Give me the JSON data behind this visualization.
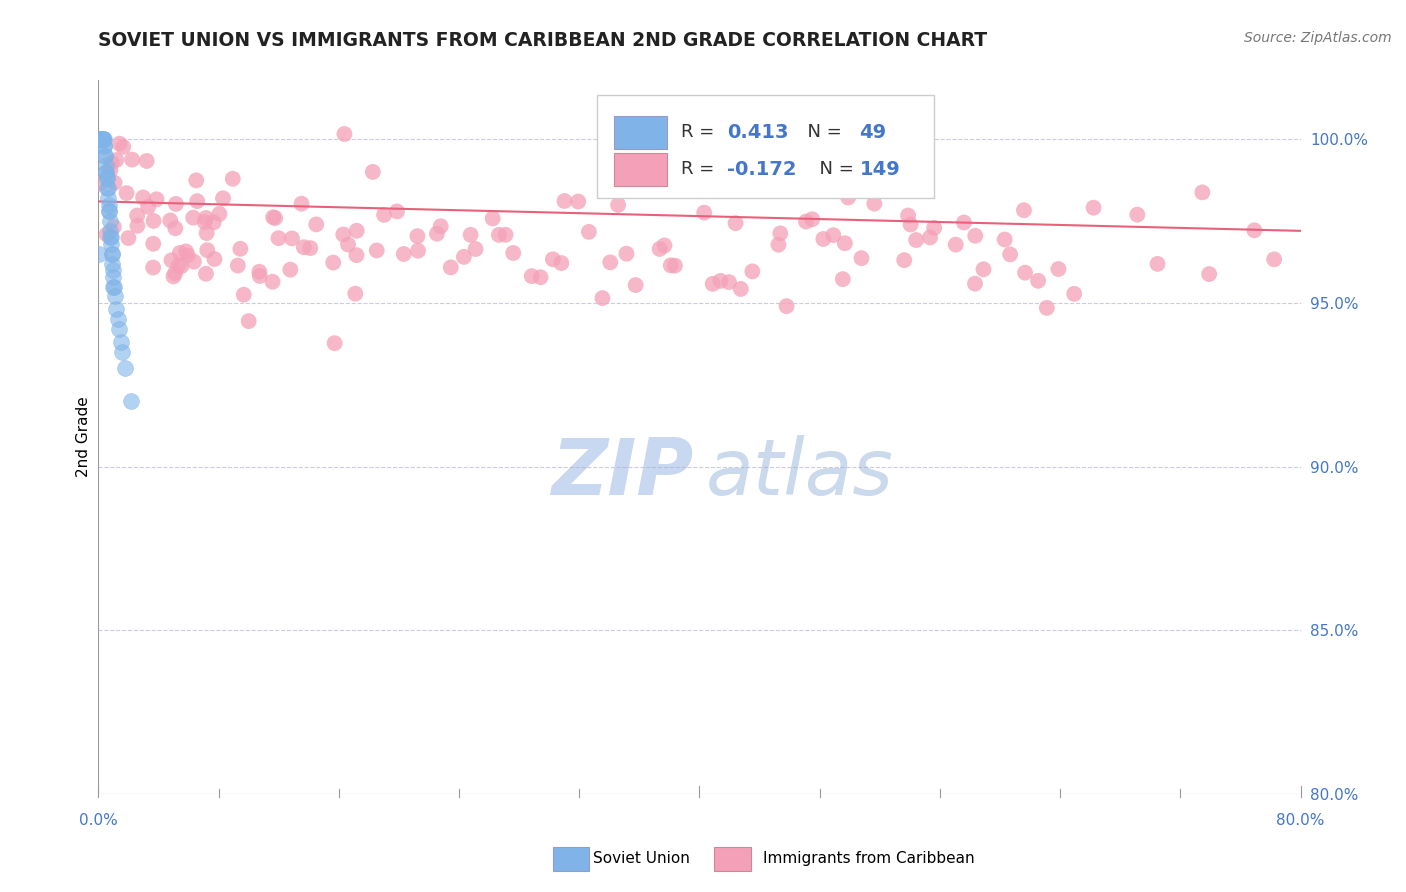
{
  "title": "SOVIET UNION VS IMMIGRANTS FROM CARIBBEAN 2ND GRADE CORRELATION CHART",
  "source": "Source: ZipAtlas.com",
  "ylabel": "2nd Grade",
  "xmin": 0.0,
  "xmax": 80.0,
  "ymin": 80.0,
  "ymax": 101.8,
  "legend_R1": "0.413",
  "legend_N1": "49",
  "legend_R2": "-0.172",
  "legend_N2": "149",
  "blue_color": "#80B4E8",
  "pink_color": "#F4A0B8",
  "pink_line_color": "#E8607A",
  "watermark_zip_color": "#C8D8F0",
  "watermark_atlas_color": "#A8C0E0",
  "axis_color": "#4477CC",
  "blue_scatter_x": [
    0.05,
    0.08,
    0.1,
    0.12,
    0.15,
    0.18,
    0.2,
    0.22,
    0.25,
    0.28,
    0.3,
    0.32,
    0.35,
    0.38,
    0.4,
    0.42,
    0.45,
    0.48,
    0.5,
    0.52,
    0.55,
    0.58,
    0.6,
    0.62,
    0.65,
    0.68,
    0.7,
    0.72,
    0.75,
    0.78,
    0.8,
    0.82,
    0.85,
    0.88,
    0.9,
    0.92,
    0.95,
    0.98,
    1.0,
    1.05,
    1.1,
    1.2,
    1.3,
    1.4,
    1.5,
    1.6,
    1.8,
    2.2,
    0.05
  ],
  "blue_scatter_y": [
    100.0,
    100.0,
    100.0,
    100.0,
    100.0,
    100.0,
    100.0,
    100.0,
    100.0,
    100.0,
    100.0,
    100.0,
    100.0,
    99.8,
    99.8,
    99.5,
    99.5,
    99.2,
    99.0,
    99.0,
    98.8,
    98.8,
    98.5,
    98.5,
    98.2,
    98.0,
    97.8,
    97.8,
    97.5,
    97.2,
    97.0,
    97.0,
    96.8,
    96.5,
    96.5,
    96.2,
    96.0,
    95.8,
    95.5,
    95.5,
    95.2,
    94.8,
    94.5,
    94.2,
    93.8,
    93.5,
    93.0,
    92.0,
    96.5
  ],
  "pink_scatter_x": [
    0.3,
    0.5,
    0.8,
    1.0,
    1.2,
    1.5,
    1.8,
    2.0,
    2.2,
    2.5,
    2.8,
    3.0,
    3.2,
    3.5,
    3.8,
    4.0,
    4.2,
    4.5,
    4.8,
    5.0,
    5.2,
    5.5,
    5.8,
    6.0,
    6.2,
    6.5,
    6.8,
    7.0,
    7.2,
    7.5,
    7.8,
    8.0,
    8.2,
    8.5,
    9.0,
    9.5,
    10.0,
    10.5,
    11.0,
    11.5,
    12.0,
    12.5,
    13.0,
    13.5,
    14.0,
    14.5,
    15.0,
    15.5,
    16.0,
    16.5,
    17.0,
    17.5,
    18.0,
    18.5,
    19.0,
    20.0,
    21.0,
    22.0,
    23.0,
    24.0,
    25.0,
    26.0,
    27.0,
    28.0,
    29.0,
    30.0,
    31.0,
    32.0,
    33.0,
    34.0,
    35.0,
    36.0,
    37.0,
    38.0,
    39.0,
    40.0,
    41.0,
    42.0,
    43.0,
    44.0,
    45.0,
    46.0,
    47.0,
    48.0,
    49.0,
    50.0,
    51.0,
    52.0,
    53.0,
    54.0,
    55.0,
    56.0,
    57.0,
    58.0,
    59.0,
    60.0,
    61.0,
    62.0,
    63.0,
    64.0,
    1.0,
    2.0,
    3.0,
    4.0,
    5.0,
    6.5,
    8.0,
    9.5,
    11.5,
    14.0,
    16.5,
    19.5,
    23.0,
    26.5,
    30.5,
    34.5,
    38.5,
    42.5,
    46.5,
    50.5,
    54.5,
    58.5,
    62.5,
    66.0,
    70.0,
    74.0,
    78.0,
    1.5,
    3.5,
    5.5,
    7.5,
    10.0,
    13.0,
    17.0,
    21.0,
    25.0,
    29.0,
    33.0,
    37.5,
    41.5,
    45.5,
    49.5,
    53.5,
    57.5,
    61.5,
    65.0,
    69.0,
    73.0,
    77.0
  ],
  "pink_scatter_y": [
    98.5,
    98.8,
    99.0,
    98.5,
    99.2,
    98.0,
    98.5,
    97.8,
    98.2,
    98.0,
    97.5,
    98.2,
    97.0,
    97.8,
    96.8,
    97.5,
    97.2,
    96.5,
    97.0,
    97.2,
    96.8,
    97.5,
    96.2,
    97.0,
    96.5,
    97.2,
    96.0,
    97.8,
    96.5,
    97.0,
    96.2,
    97.5,
    96.0,
    96.8,
    96.5,
    97.2,
    97.0,
    96.5,
    96.8,
    96.0,
    97.2,
    96.8,
    97.0,
    96.5,
    96.8,
    97.2,
    97.0,
    96.5,
    97.2,
    96.8,
    97.0,
    96.5,
    97.2,
    96.8,
    97.0,
    96.5,
    96.8,
    97.2,
    97.0,
    96.5,
    96.8,
    97.0,
    96.5,
    96.8,
    97.2,
    97.0,
    96.5,
    97.2,
    96.8,
    97.0,
    96.5,
    96.8,
    97.2,
    97.0,
    96.5,
    96.8,
    97.0,
    96.5,
    96.8,
    97.2,
    97.0,
    96.5,
    96.8,
    97.2,
    97.0,
    96.5,
    96.8,
    97.0,
    96.5,
    96.8,
    97.2,
    97.0,
    96.5,
    96.8,
    97.0,
    96.5,
    96.8,
    97.2,
    97.0,
    97.5,
    99.0,
    98.0,
    98.5,
    98.2,
    97.5,
    98.0,
    97.8,
    98.2,
    97.5,
    98.0,
    97.2,
    97.8,
    97.5,
    97.2,
    96.8,
    97.0,
    96.5,
    96.8,
    97.2,
    97.0,
    96.5,
    96.8,
    97.0,
    96.5,
    96.8,
    97.2,
    97.0,
    98.5,
    97.5,
    97.0,
    97.8,
    96.5,
    97.2,
    96.8,
    97.5,
    97.0,
    96.5,
    96.8,
    97.2,
    97.0,
    96.5,
    96.8,
    97.0,
    96.5,
    96.8,
    97.2,
    97.0,
    96.5,
    96.8
  ],
  "pink_trend_x": [
    0.0,
    80.0
  ],
  "pink_trend_y": [
    98.1,
    97.2
  ],
  "ytick_vals": [
    80.0,
    85.0,
    90.0,
    95.0,
    100.0
  ],
  "ytick_labels": [
    "80.0%",
    "85.0%",
    "90.0%",
    "95.0%",
    "100.0%"
  ]
}
